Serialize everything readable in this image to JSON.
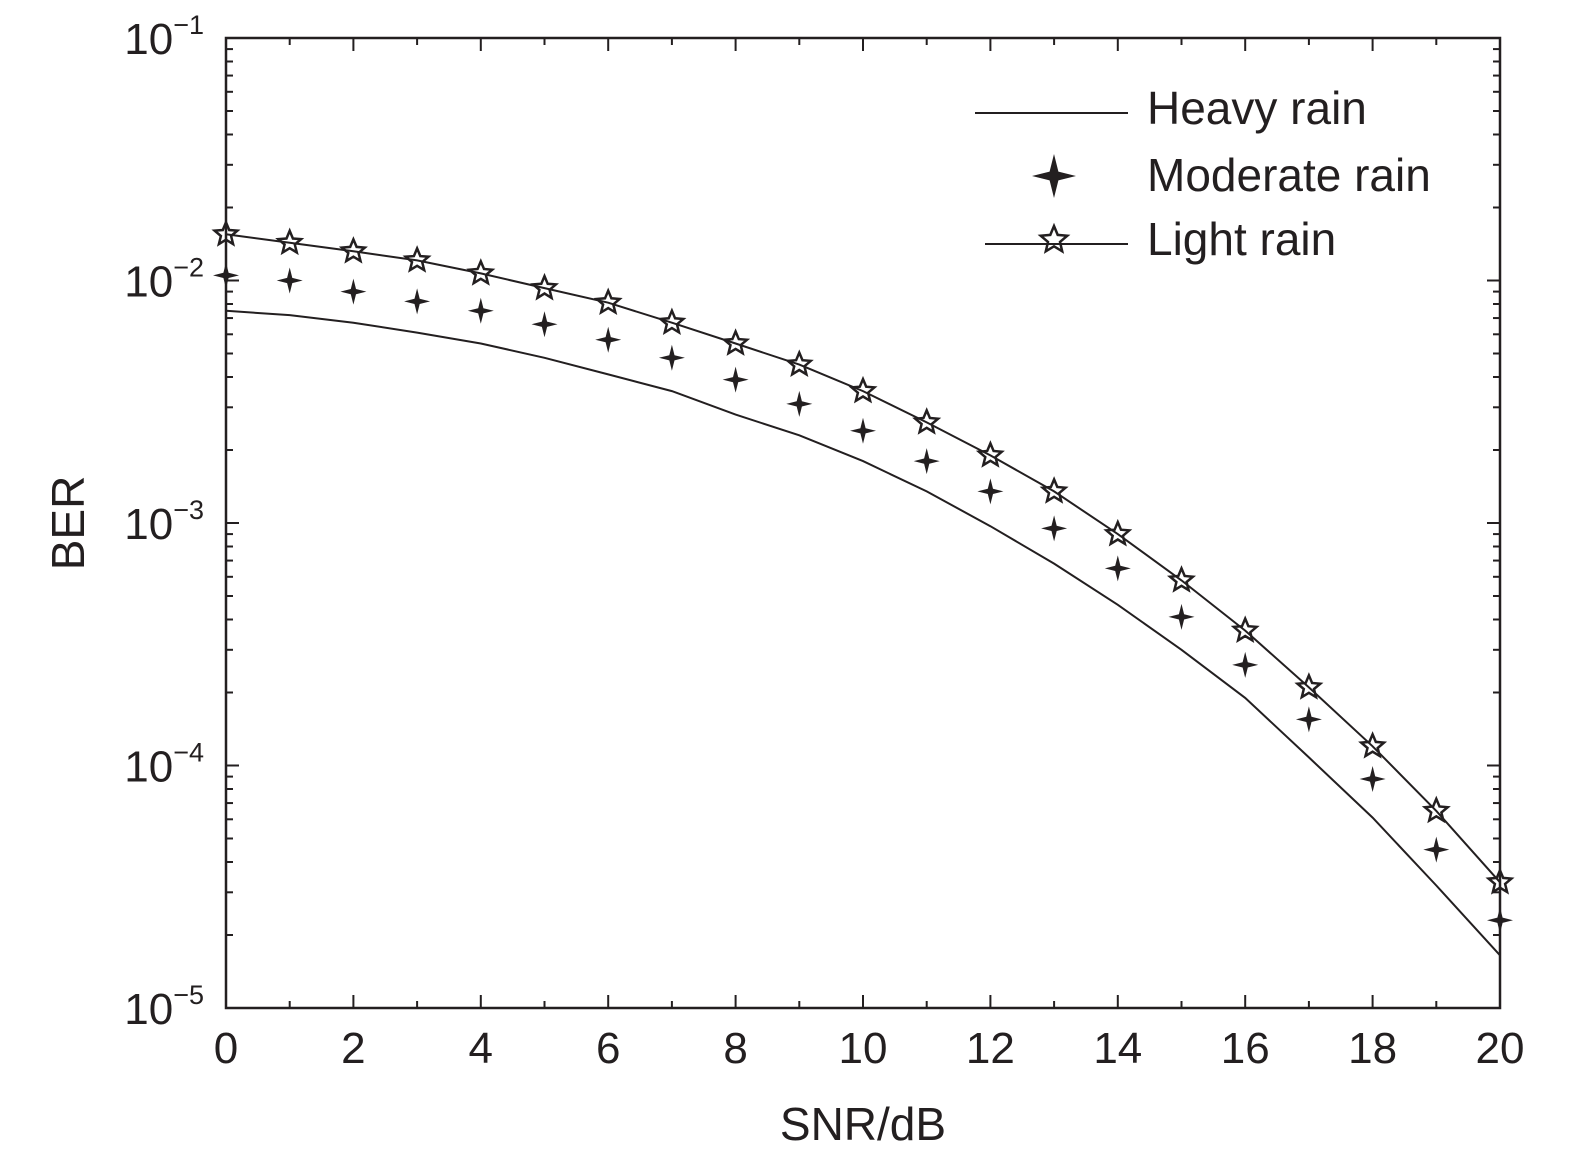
{
  "chart_data": {
    "type": "line",
    "title": "",
    "xlabel": "SNR/dB",
    "ylabel": "BER",
    "xlim": [
      0,
      20
    ],
    "ylim": [
      1e-05,
      0.1
    ],
    "yscale": "log",
    "grid": false,
    "legend_position": "top-right",
    "x_ticks": [
      0,
      2,
      4,
      6,
      8,
      10,
      12,
      14,
      16,
      18,
      20
    ],
    "x_tick_labels": [
      "0",
      "2",
      "4",
      "6",
      "8",
      "10",
      "12",
      "14",
      "16",
      "18",
      "20"
    ],
    "y_ticks": [
      {
        "value": 0.1,
        "base": "10",
        "exponent": "−1"
      },
      {
        "value": 0.01,
        "base": "10",
        "exponent": "−2"
      },
      {
        "value": 0.001,
        "base": "10",
        "exponent": "−3"
      },
      {
        "value": 0.0001,
        "base": "10",
        "exponent": "−4"
      },
      {
        "value": 1e-05,
        "base": "10",
        "exponent": "−5"
      }
    ],
    "x": [
      0,
      1,
      2,
      3,
      4,
      5,
      6,
      7,
      8,
      9,
      10,
      11,
      12,
      13,
      14,
      15,
      16,
      17,
      18,
      19,
      20
    ],
    "series": [
      {
        "name": "Heavy rain",
        "style": "line",
        "color": "#231f20",
        "values": [
          0.0075,
          0.0072,
          0.0067,
          0.0061,
          0.0055,
          0.0048,
          0.0041,
          0.0035,
          0.0028,
          0.0023,
          0.0018,
          0.00135,
          0.00097,
          0.00068,
          0.00046,
          0.0003,
          0.00019,
          0.000108,
          6.1e-05,
          3.2e-05,
          1.65e-05
        ]
      },
      {
        "name": "Moderate rain",
        "style": "markers",
        "marker": "star4",
        "color": "#231f20",
        "values": [
          0.0105,
          0.01,
          0.009,
          0.0082,
          0.0075,
          0.0066,
          0.0057,
          0.0048,
          0.0039,
          0.0031,
          0.0024,
          0.0018,
          0.00135,
          0.00095,
          0.00065,
          0.00041,
          0.00026,
          0.000155,
          8.8e-05,
          4.5e-05,
          2.3e-05
        ]
      },
      {
        "name": "Light rain",
        "style": "line+markers",
        "marker": "star5",
        "color": "#231f20",
        "values": [
          0.0155,
          0.0143,
          0.0132,
          0.0121,
          0.0107,
          0.0093,
          0.0081,
          0.0067,
          0.0055,
          0.0045,
          0.0035,
          0.0026,
          0.0019,
          0.00135,
          0.0009,
          0.00058,
          0.00036,
          0.00021,
          0.00012,
          6.5e-05,
          3.3e-05
        ]
      }
    ]
  }
}
